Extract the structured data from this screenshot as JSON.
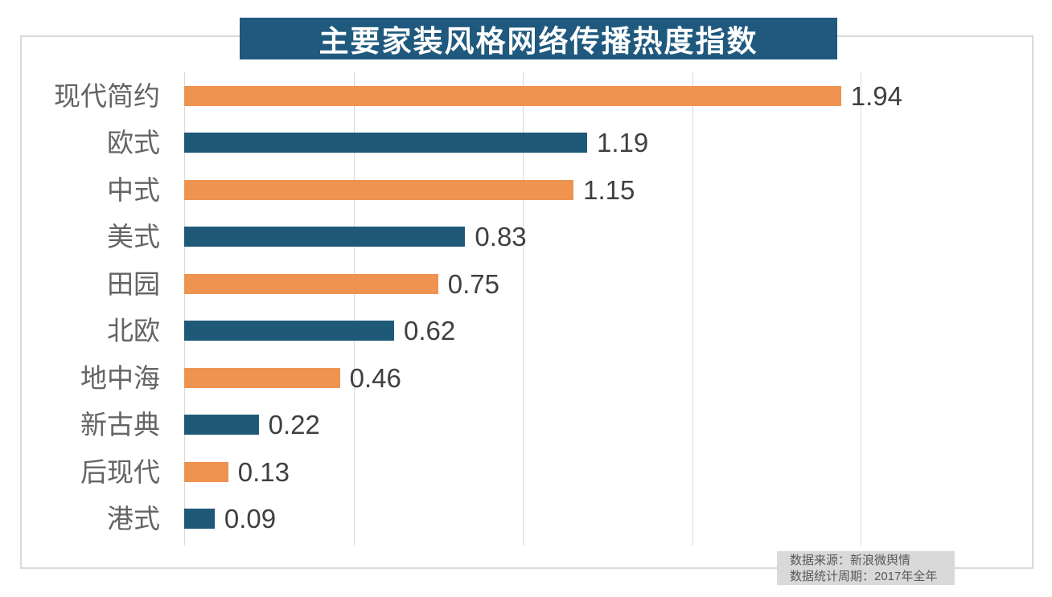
{
  "title": "主要家装风格网络传播热度指数",
  "chart_data": {
    "type": "bar",
    "orientation": "horizontal",
    "title": "主要家装风格网络传播热度指数",
    "categories": [
      "现代简约",
      "欧式",
      "中式",
      "美式",
      "田园",
      "北欧",
      "地中海",
      "新古典",
      "后现代",
      "港式"
    ],
    "values": [
      1.94,
      1.19,
      1.15,
      0.83,
      0.75,
      0.62,
      0.46,
      0.22,
      0.13,
      0.09
    ],
    "value_labels": [
      "1.94",
      "1.19",
      "1.15",
      "0.83",
      "0.75",
      "0.62",
      "0.46",
      "0.22",
      "0.13",
      "0.09"
    ],
    "xlabel": "",
    "ylabel": "",
    "xlim": [
      0,
      2.0
    ],
    "gridline_interval": 0.5,
    "grid": true,
    "data_labels": true,
    "legend": false,
    "bar_colors_alternating": [
      "#EF9350",
      "#1E5A78"
    ]
  },
  "footer": {
    "source_line": "数据来源：新浪微舆情",
    "period_line": "数据统计周期：2017年全年"
  },
  "colors": {
    "banner_bg": "#20597E",
    "banner_text": "#FFFFFF",
    "bar_orange": "#EF9350",
    "bar_blue": "#1E5A78",
    "gridline": "#D9D9D9",
    "border": "#D9D9D9",
    "category_label": "#646464",
    "value_label": "#3F3F3F",
    "footer_bg": "#D9D9D9",
    "footer_text": "#595959"
  }
}
